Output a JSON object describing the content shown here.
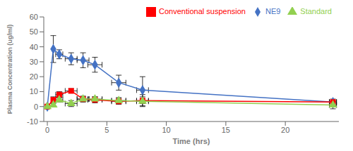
{
  "chart_data": {
    "type": "line",
    "xlabel": "Time (hrs)",
    "ylabel": "Plasma Concentration (ug/ml)",
    "xlim": [
      -0.3,
      24.5
    ],
    "ylim": [
      -10,
      60
    ],
    "xticks": [
      0,
      5,
      10,
      15,
      20
    ],
    "yticks": [
      -10,
      0,
      10,
      20,
      30,
      40,
      50,
      60
    ],
    "legend": "upper right",
    "series": [
      {
        "name": "NE9",
        "color": "#4472C4",
        "marker": "diamond",
        "x": [
          0,
          0.5,
          1,
          2,
          3,
          4,
          6,
          8,
          24
        ],
        "values": [
          0,
          38.5,
          35,
          32,
          31,
          28,
          16,
          11,
          3
        ],
        "xerr": [
          0,
          0,
          0.3,
          0.5,
          0.5,
          0.6,
          0.6,
          0.5,
          0.3
        ],
        "yerr": [
          0,
          9,
          3,
          4,
          5,
          5,
          5,
          9,
          1
        ]
      },
      {
        "name": "Conventional suspension",
        "color": "#FF0000",
        "marker": "square",
        "x": [
          0,
          0.5,
          1,
          2,
          3,
          4,
          6,
          8,
          24
        ],
        "values": [
          0,
          4.5,
          8,
          10.5,
          5,
          4.5,
          3.5,
          4,
          3
        ],
        "xerr": [
          0,
          0,
          0.3,
          0.5,
          0.5,
          0.6,
          0.6,
          0.5,
          0.3
        ],
        "yerr": [
          0,
          2,
          2,
          1.5,
          2,
          2,
          2,
          4,
          2
        ]
      },
      {
        "name": "Standard",
        "color": "#92D050",
        "marker": "triangle",
        "x": [
          0,
          0.5,
          1,
          2,
          3,
          4,
          6,
          8,
          24
        ],
        "values": [
          0,
          1,
          4.5,
          2,
          5,
          5,
          4,
          3.5,
          1
        ],
        "xerr": [
          0,
          0,
          0.3,
          0.5,
          0.5,
          0.6,
          0.6,
          0.5,
          0.3
        ],
        "yerr": [
          0,
          1,
          1.5,
          2,
          1.5,
          1.5,
          2,
          3,
          2.5
        ]
      }
    ]
  }
}
